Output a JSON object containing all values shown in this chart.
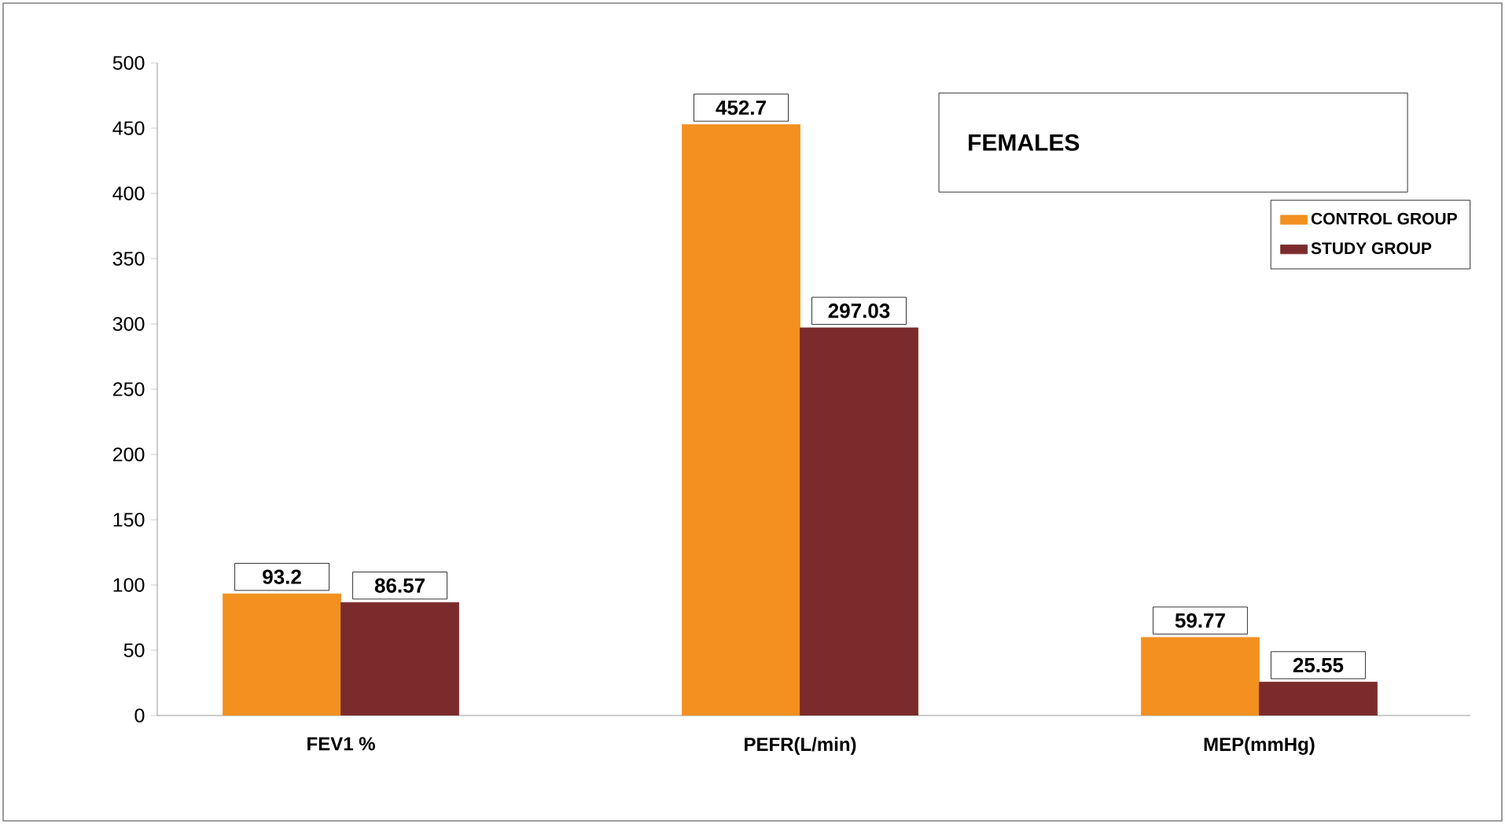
{
  "chart_data": {
    "type": "bar",
    "title": "FEMALES",
    "categories": [
      "FEV1 %",
      "PEFR(L/min)",
      "MEP(mmHg)"
    ],
    "series": [
      {
        "name": "CONTROL GROUP",
        "color": "#f39020",
        "values": [
          93.2,
          452.7,
          59.77
        ]
      },
      {
        "name": "STUDY GROUP",
        "color": "#7b2b2b",
        "values": [
          86.57,
          297.03,
          25.55
        ]
      }
    ],
    "ylim": [
      0,
      500
    ],
    "yticks": [
      0,
      50,
      100,
      150,
      200,
      250,
      300,
      350,
      400,
      450,
      500
    ],
    "data_labels": true,
    "legend": "top right"
  }
}
